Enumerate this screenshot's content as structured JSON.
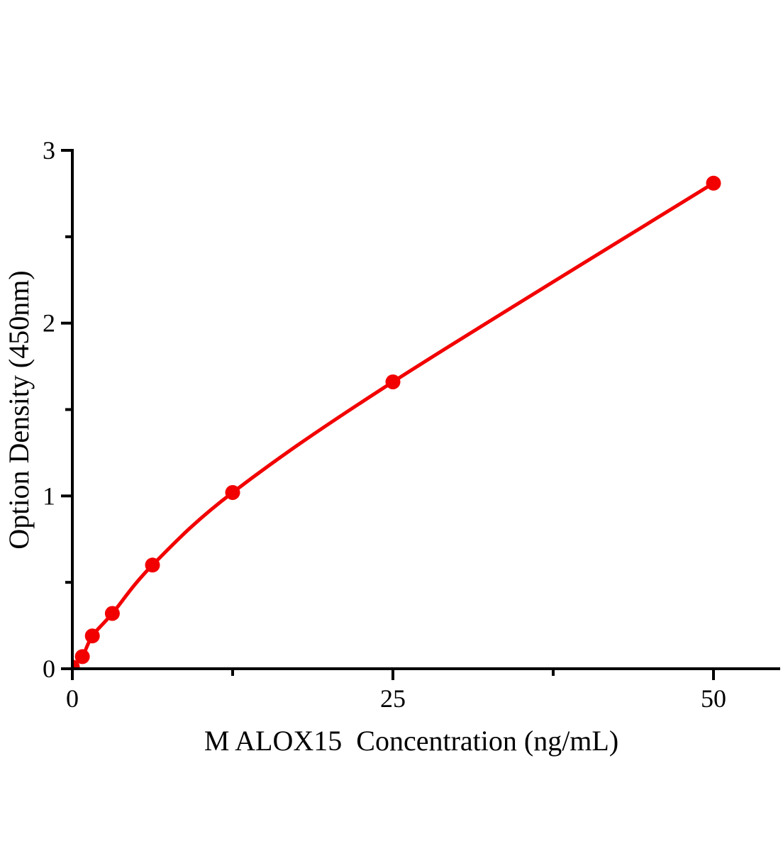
{
  "chart": {
    "background_color": "#ffffff",
    "axis_color": "#000000",
    "text_color": "#000000",
    "curve_color": "#f20000",
    "marker_color": "#f20000"
  },
  "chart_data": {
    "type": "line",
    "title": "",
    "xlabel": "M ALOX15  Concentration (ng/mL)",
    "ylabel": "Option Density (450nm)",
    "x": [
      0,
      0.78,
      1.56,
      3.12,
      6.25,
      12.5,
      25,
      50
    ],
    "y": [
      0.01,
      0.07,
      0.19,
      0.32,
      0.6,
      1.02,
      1.66,
      2.81
    ],
    "xlim": [
      0,
      55.2
    ],
    "ylim": [
      0,
      3
    ],
    "x_major_ticks": [
      0,
      25,
      50
    ],
    "x_major_tick_labels": [
      "0",
      "25",
      "50"
    ],
    "x_minor_ticks": [
      12.5,
      37.5
    ],
    "y_major_ticks": [
      0,
      1,
      2,
      3
    ],
    "y_major_tick_labels": [
      "0",
      "1",
      "2",
      "3"
    ],
    "y_minor_ticks": [
      0.5,
      1.5,
      2.5
    ],
    "grid": false,
    "legend": "none",
    "marker": "filled-circle"
  }
}
